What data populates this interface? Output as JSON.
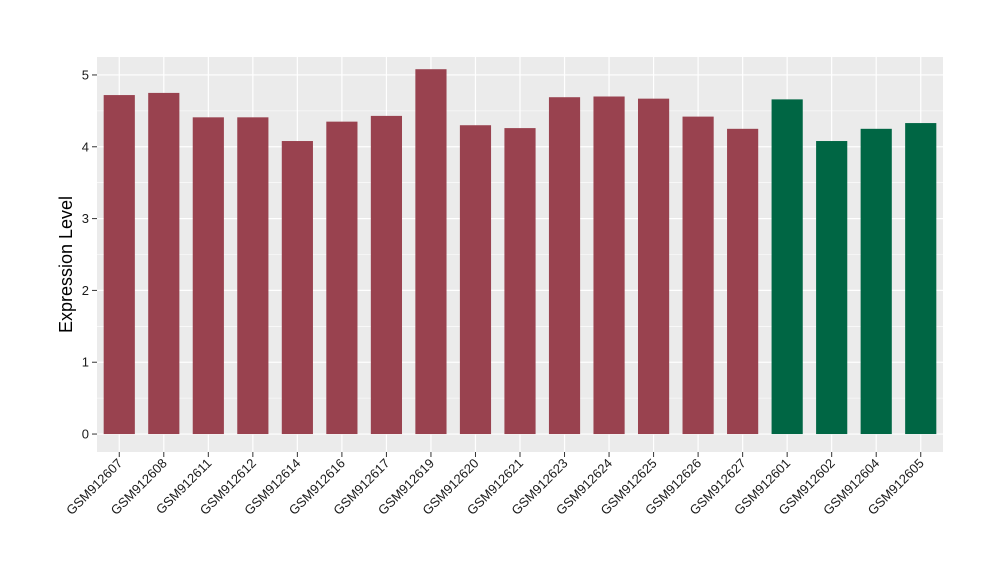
{
  "chart_data": {
    "type": "bar",
    "ylabel": "Expression Level",
    "xlabel": "",
    "ylim": [
      -0.25,
      5.25
    ],
    "yticks": [
      0,
      1,
      2,
      3,
      4,
      5
    ],
    "grid": true,
    "categories": [
      "GSM912607",
      "GSM912608",
      "GSM912611",
      "GSM912612",
      "GSM912614",
      "GSM912616",
      "GSM912617",
      "GSM912619",
      "GSM912620",
      "GSM912621",
      "GSM912623",
      "GSM912624",
      "GSM912625",
      "GSM912626",
      "GSM912627",
      "GSM912601",
      "GSM912602",
      "GSM912604",
      "GSM912605"
    ],
    "values": [
      4.72,
      4.75,
      4.41,
      4.41,
      4.08,
      4.35,
      4.43,
      5.08,
      4.3,
      4.26,
      4.69,
      4.7,
      4.67,
      4.42,
      4.25,
      4.66,
      4.08,
      4.25,
      4.33
    ],
    "group_colors": [
      "#99424f",
      "#99424f",
      "#99424f",
      "#99424f",
      "#99424f",
      "#99424f",
      "#99424f",
      "#99424f",
      "#99424f",
      "#99424f",
      "#99424f",
      "#99424f",
      "#99424f",
      "#99424f",
      "#99424f",
      "#006644",
      "#006644",
      "#006644",
      "#006644"
    ],
    "panel_background": "#ebebeb",
    "grid_color": "#ffffff"
  }
}
